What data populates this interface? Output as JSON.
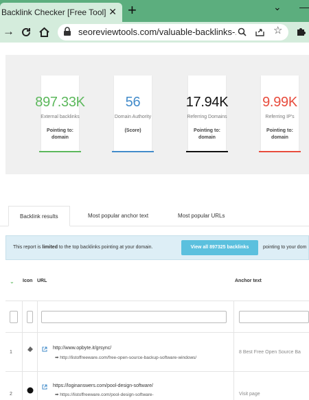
{
  "browser": {
    "tab_title": "Backlink Checker [Free Tool] → SE",
    "tab_close": "✕",
    "new_tab": "+",
    "minimize": "⌄",
    "maximize": "—",
    "url": "seoreviewtools.com/valuable-backlinks-..."
  },
  "stats": [
    {
      "value": "897.33K",
      "label": "External backlinks",
      "sub": "Pointing to: domain",
      "color": "#5cb85c"
    },
    {
      "value": "56",
      "label": "Domain Authority",
      "sub": "(Score)",
      "color": "#428bca"
    },
    {
      "value": "17.94K",
      "label": "Referring Domains",
      "sub": "Pointing to: domain",
      "color": "#111111"
    },
    {
      "value": "9.99K",
      "label": "Referring IP's",
      "sub": "Pointing to: domain",
      "color": "#e84c3d"
    }
  ],
  "tabs": [
    "Backlink results",
    "Most popular anchor text",
    "Most popular URLs"
  ],
  "banner": {
    "text_prefix": "This report is ",
    "text_bold": "limited",
    "text_suffix": " to the top backlinks pointing at your domain.",
    "button": "View all 897325 backlinks",
    "text_after": "pointing to your dom"
  },
  "table": {
    "col_icon": "Icon",
    "col_url": "URL",
    "col_anchor": "Anchor text",
    "rows": [
      {
        "num": "1",
        "url": "http://www.opbyte.it/grsync/",
        "target": "➡ http://listoffreeware.com/free-open-source-backup-software-windows/",
        "anchor": "8 Best Free Open Source Ba"
      },
      {
        "num": "2",
        "url": "https://loginanswers.com/pool-design-software/",
        "target": "➡ https://listoffreeware.com/pool-design-software-",
        "anchor": "Visit page"
      }
    ]
  }
}
